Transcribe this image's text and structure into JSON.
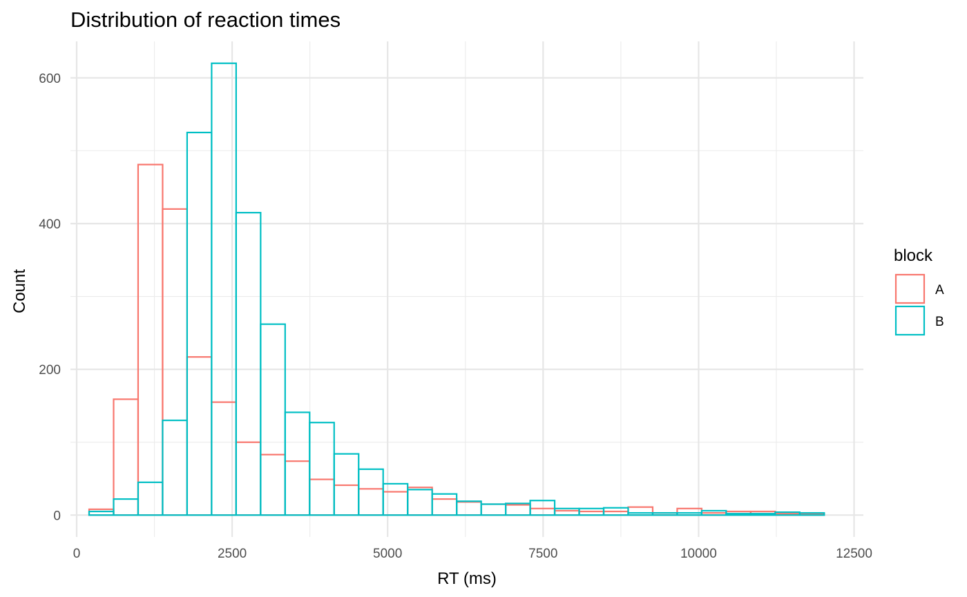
{
  "chart_data": {
    "type": "bar",
    "subtype": "overlaid-histogram",
    "title": "Distribution of reaction times",
    "xlabel": "RT (ms)",
    "ylabel": "Count",
    "xlim": [
      -100,
      12650
    ],
    "ylim": [
      -30,
      650
    ],
    "x_ticks": [
      0,
      2500,
      5000,
      7500,
      10000,
      12500
    ],
    "x_tick_labels": [
      "0",
      "2500",
      "5000",
      "7500",
      "10000",
      "12500"
    ],
    "y_ticks": [
      0,
      200,
      400,
      600
    ],
    "y_tick_labels": [
      "0",
      "200",
      "400",
      "600"
    ],
    "grid": true,
    "bin_edges": [
      200,
      594,
      988,
      1382,
      1776,
      2170,
      2564,
      2958,
      3352,
      3746,
      4140,
      4534,
      4928,
      5322,
      5716,
      6110,
      6504,
      6898,
      7292,
      7686,
      8080,
      8474,
      8868,
      9262,
      9656,
      10050,
      10444,
      10838,
      11232,
      11626,
      12020
    ],
    "legend_title": "block",
    "legend_position": "right",
    "series": [
      {
        "name": "A",
        "color": "#F8766D",
        "values": [
          8,
          159,
          481,
          420,
          217,
          155,
          100,
          83,
          74,
          49,
          41,
          36,
          32,
          38,
          22,
          18,
          15,
          14,
          9,
          6,
          5,
          5,
          11,
          3,
          9,
          3,
          5,
          5,
          2,
          2
        ]
      },
      {
        "name": "B",
        "color": "#00BFC4",
        "values": [
          5,
          22,
          45,
          130,
          525,
          620,
          415,
          262,
          141,
          127,
          84,
          63,
          43,
          35,
          29,
          19,
          15,
          16,
          20,
          9,
          9,
          10,
          3,
          3,
          3,
          6,
          2,
          2,
          4,
          3
        ]
      }
    ]
  }
}
